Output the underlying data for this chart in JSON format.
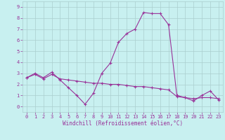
{
  "title": "",
  "xlabel": "Windchill (Refroidissement éolien,°C)",
  "background_color": "#c8f0f0",
  "grid_color": "#aacece",
  "line_color": "#993399",
  "xlim": [
    -0.5,
    23.5
  ],
  "ylim": [
    -0.5,
    9.5
  ],
  "xticks": [
    0,
    1,
    2,
    3,
    4,
    5,
    6,
    7,
    8,
    9,
    10,
    11,
    12,
    13,
    14,
    15,
    16,
    17,
    18,
    19,
    20,
    21,
    22,
    23
  ],
  "yticks": [
    0,
    1,
    2,
    3,
    4,
    5,
    6,
    7,
    8,
    9
  ],
  "series1_x": [
    0,
    1,
    2,
    3,
    4,
    5,
    6,
    7,
    8,
    9,
    10,
    11,
    12,
    13,
    14,
    15,
    16,
    17,
    18,
    19,
    20,
    21,
    22,
    23
  ],
  "series1_y": [
    2.6,
    3.0,
    2.6,
    3.1,
    2.4,
    1.7,
    1.0,
    0.2,
    1.2,
    3.0,
    3.9,
    5.8,
    6.6,
    7.0,
    8.5,
    8.4,
    8.4,
    7.4,
    1.0,
    0.8,
    0.5,
    1.0,
    1.4,
    0.6
  ],
  "series2_x": [
    0,
    1,
    2,
    3,
    4,
    5,
    6,
    7,
    8,
    9,
    10,
    11,
    12,
    13,
    14,
    15,
    16,
    17,
    18,
    19,
    20,
    21,
    22,
    23
  ],
  "series2_y": [
    2.6,
    2.9,
    2.5,
    2.9,
    2.5,
    2.4,
    2.3,
    2.2,
    2.1,
    2.1,
    2.0,
    2.0,
    1.9,
    1.8,
    1.8,
    1.7,
    1.6,
    1.5,
    0.9,
    0.8,
    0.7,
    0.8,
    0.8,
    0.7
  ],
  "label_color": "#993399",
  "label_fontsize": 5.0,
  "xlabel_fontsize": 5.5,
  "marker_size": 3.0,
  "line_width": 0.8
}
